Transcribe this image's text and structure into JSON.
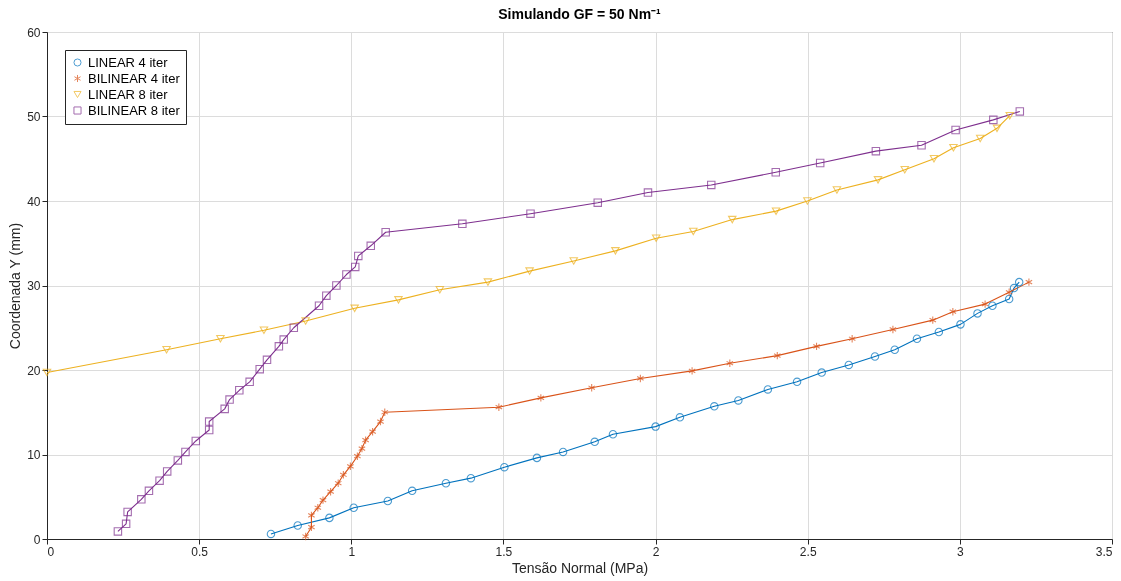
{
  "chart_data": {
    "type": "line",
    "title": "Simulando GF = 50 Nm⁻¹",
    "xlabel": "Tensão Normal (MPa)",
    "ylabel": "Coordenada Y (mm)",
    "xlim": [
      0,
      3.5
    ],
    "xticks": [
      0,
      0.5,
      1,
      1.5,
      2,
      2.5,
      3,
      3.5
    ],
    "ylim": [
      0,
      60
    ],
    "yticks": [
      0,
      10,
      20,
      30,
      40,
      50,
      60
    ],
    "grid": true,
    "legend": "top left",
    "line_style": "solid",
    "series": [
      {
        "name": "LINEAR 4 iter",
        "color": "#0072bd",
        "marker": "circle",
        "x": [
          0.736,
          0.824,
          0.928,
          1.008,
          1.12,
          1.2,
          1.311,
          1.393,
          1.503,
          1.61,
          1.696,
          1.8,
          1.86,
          2.0,
          2.08,
          2.193,
          2.272,
          2.369,
          2.465,
          2.546,
          2.635,
          2.721,
          2.786,
          2.859,
          2.931,
          3.002,
          3.058,
          3.107,
          3.162,
          3.178,
          3.195
        ],
        "values": [
          0.6,
          1.6,
          2.5,
          3.7,
          4.5,
          5.7,
          6.6,
          7.2,
          8.5,
          9.6,
          10.3,
          11.5,
          12.4,
          13.3,
          14.4,
          15.7,
          16.4,
          17.7,
          18.6,
          19.7,
          20.6,
          21.6,
          22.4,
          23.7,
          24.5,
          25.4,
          26.7,
          27.6,
          28.4,
          29.7,
          30.4
        ]
      },
      {
        "name": "BILINEAR 4 iter",
        "color": "#d95319",
        "marker": "cross",
        "x": [
          0.85,
          0.869,
          0.869,
          0.89,
          0.907,
          0.932,
          0.957,
          0.974,
          0.997,
          1.02,
          1.035,
          1.047,
          1.07,
          1.096,
          1.11,
          1.485,
          1.623,
          1.79,
          1.95,
          2.12,
          2.244,
          2.4,
          2.529,
          2.646,
          2.78,
          2.911,
          2.977,
          3.083,
          3.162,
          3.227
        ],
        "values": [
          0.3,
          1.4,
          2.8,
          3.7,
          4.6,
          5.6,
          6.6,
          7.6,
          8.6,
          9.8,
          10.7,
          11.7,
          12.7,
          13.9,
          15.0,
          15.6,
          16.7,
          17.9,
          19.0,
          19.9,
          20.8,
          21.7,
          22.8,
          23.7,
          24.8,
          25.9,
          26.9,
          27.8,
          29.2,
          30.4
        ]
      },
      {
        "name": "LINEAR 8 iter",
        "color": "#edb120",
        "marker": "triangle",
        "x": [
          0,
          0.393,
          0.57,
          0.713,
          0.85,
          1.011,
          1.155,
          1.291,
          1.449,
          1.586,
          1.731,
          1.868,
          2.002,
          2.124,
          2.252,
          2.396,
          2.499,
          2.596,
          2.731,
          2.819,
          2.915,
          2.979,
          3.067,
          3.122,
          3.164
        ],
        "values": [
          19.7,
          22.4,
          23.7,
          24.7,
          25.8,
          27.3,
          28.3,
          29.5,
          30.4,
          31.7,
          32.9,
          34.1,
          35.6,
          36.4,
          37.8,
          38.8,
          40.0,
          41.3,
          42.5,
          43.7,
          45.0,
          46.3,
          47.4,
          48.6,
          50.1
        ]
      },
      {
        "name": "BILINEAR 8 iter",
        "color": "#7e2f8e",
        "marker": "square",
        "x": [
          0.233,
          0.26,
          0.265,
          0.31,
          0.335,
          0.37,
          0.395,
          0.43,
          0.455,
          0.489,
          0.533,
          0.533,
          0.584,
          0.6,
          0.632,
          0.666,
          0.699,
          0.723,
          0.762,
          0.778,
          0.811,
          0.894,
          0.918,
          0.951,
          0.984,
          1.013,
          1.023,
          1.064,
          1.113,
          1.365,
          1.589,
          1.81,
          1.975,
          2.183,
          2.395,
          2.541,
          2.724,
          2.874,
          2.986,
          3.11,
          3.197
        ],
        "values": [
          0.9,
          1.8,
          3.2,
          4.7,
          5.7,
          6.9,
          8.0,
          9.3,
          10.3,
          11.6,
          12.9,
          13.9,
          15.4,
          16.5,
          17.6,
          18.6,
          20.1,
          21.2,
          22.8,
          23.6,
          25.0,
          27.6,
          28.8,
          30.0,
          31.3,
          32.2,
          33.5,
          34.7,
          36.3,
          37.3,
          38.5,
          39.8,
          41.0,
          41.9,
          43.4,
          44.5,
          45.9,
          46.6,
          48.4,
          49.6,
          50.6
        ]
      }
    ]
  }
}
